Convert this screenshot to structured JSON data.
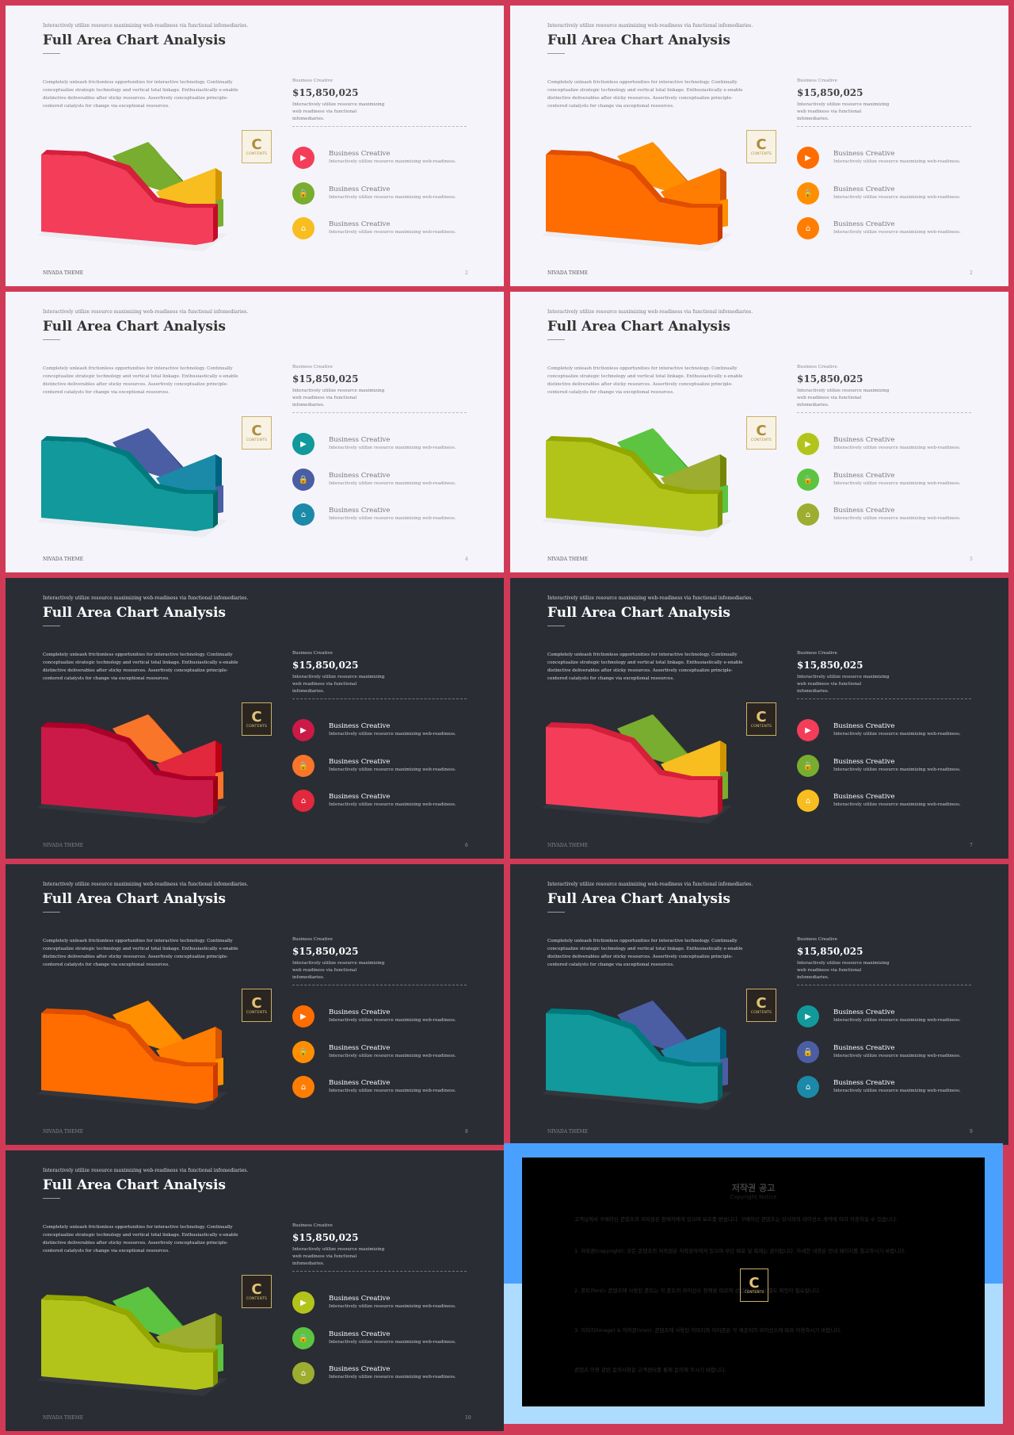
{
  "shared": {
    "kicker": "Interactively utilize resource maximizing web-readiness via functional infomediaries.",
    "title": "Full Area Chart Analysis",
    "description": "Completely unleash frictionless opportunities for interactive technology. Continually conceptualize strategic technology and vertical total linkage. Enthusiastically e-enable distinctive deliverables after sticky resources. Assertively conceptualize principle-centered catalysts for change via exceptional resources.",
    "business_label": "Business Creative",
    "amount": "$15,850,025",
    "amount_sub": "Interactively utilize resource maximizing web readiness via functional infomediaries.",
    "feature_title": "Business Creative",
    "feature_sub": "Interactively utilize resource maximizing web-readiness.",
    "footer": "NIVADA THEME",
    "logo_letter": "C",
    "logo_text": "CONTENTS"
  },
  "slides": [
    {
      "page": "2",
      "theme": "light",
      "colors": [
        "#f43d59",
        "#79ad2f",
        "#f8bd1e"
      ],
      "icons": [
        "video-icon",
        "lock-icon",
        "basket-icon"
      ]
    },
    {
      "page": "2",
      "theme": "light",
      "colors": [
        "#ff6c00",
        "#ff8f00",
        "#ff7d00"
      ],
      "icons": [
        "video-icon",
        "lock-icon",
        "basket-icon"
      ]
    },
    {
      "page": "4",
      "theme": "light",
      "colors": [
        "#11999b",
        "#4b5ea3",
        "#1b8aa8"
      ],
      "icons": [
        "video-icon",
        "lock-icon",
        "basket-icon"
      ]
    },
    {
      "page": "5",
      "theme": "light",
      "colors": [
        "#b2c41a",
        "#5cc440",
        "#9cad30"
      ],
      "icons": [
        "video-icon",
        "lock-icon",
        "basket-icon"
      ]
    },
    {
      "page": "6",
      "theme": "dark",
      "colors": [
        "#cb1a47",
        "#f8752a",
        "#e2283c"
      ],
      "icons": [
        "video-icon",
        "lock-icon",
        "basket-icon"
      ]
    },
    {
      "page": "7",
      "theme": "dark",
      "colors": [
        "#f43d59",
        "#79ad2f",
        "#f8bd1e"
      ],
      "icons": [
        "video-icon",
        "lock-icon",
        "basket-icon"
      ]
    },
    {
      "page": "8",
      "theme": "dark",
      "colors": [
        "#ff6c00",
        "#ff8f00",
        "#ff7d00"
      ],
      "icons": [
        "video-icon",
        "lock-icon",
        "basket-icon"
      ]
    },
    {
      "page": "9",
      "theme": "dark",
      "colors": [
        "#11999b",
        "#4b5ea3",
        "#1b8aa8"
      ],
      "icons": [
        "video-icon",
        "lock-icon",
        "basket-icon"
      ]
    },
    {
      "page": "10",
      "theme": "dark",
      "colors": [
        "#b2c41a",
        "#5cc440",
        "#9cad30"
      ],
      "icons": [
        "video-icon",
        "lock-icon",
        "basket-icon"
      ]
    }
  ],
  "notice": {
    "title": "저작권 공고",
    "subtitle": "Copyright Notice",
    "paragraphs": [
      "고객님께서 구매하신 콘텐츠의 저작권은 판매자에게 있으며 보호를 받습니다. 구매하신 콘텐츠는 당사와의 라이선스 계약에 따라 이용하실 수 있습니다.",
      "1. 저작권(copyright): 모든 콘텐츠의 저작권은 저작권자에게 있으며 무단 배포 및 복제는 금지됩니다. 자세한 내용은 안내 페이지를 참고하시기 바랍니다.",
      "2. 폰트(font): 콘텐츠에 사용된 폰트는 각 폰트의 라이선스 정책을 따르며 상업적 이용 시 별도 확인이 필요합니다.",
      "3. 이미지(image) & 아이콘(icon): 콘텐츠에 사용된 이미지와 아이콘은 각 제공처의 라이선스에 따라 이용하시기 바랍니다.",
      "콘텐츠 이용 관련 문의사항은 고객센터를 통해 문의해 주시기 바랍니다."
    ]
  }
}
